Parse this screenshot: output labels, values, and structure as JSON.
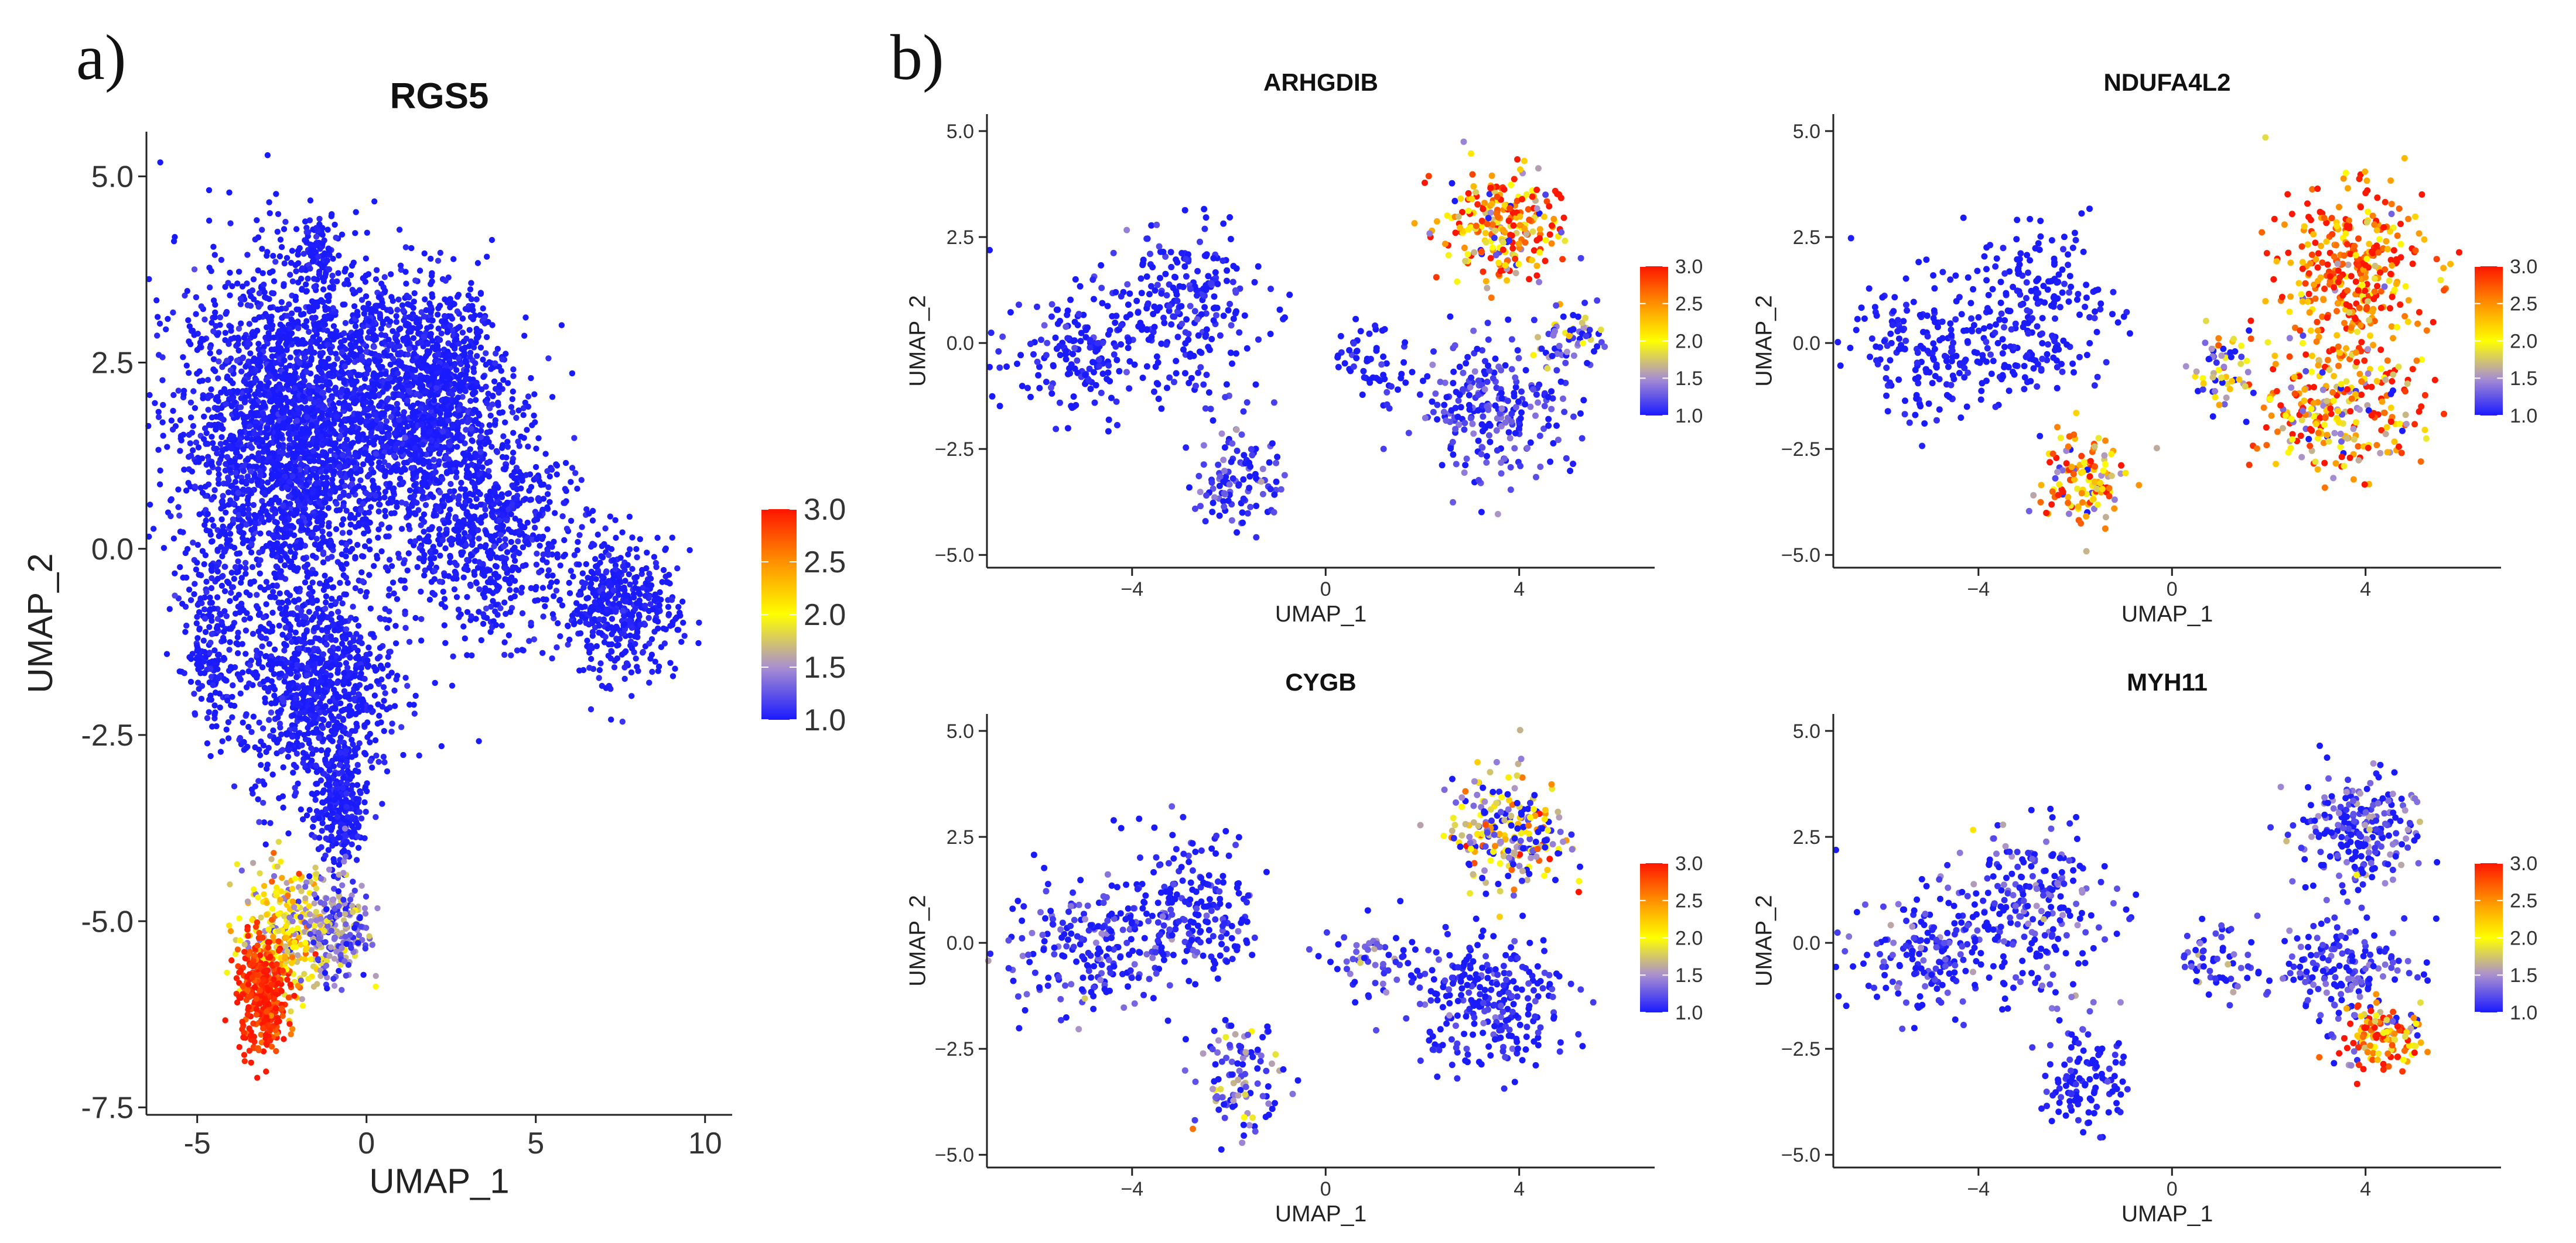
{
  "panel_labels": {
    "a": "a)",
    "b": "b)"
  },
  "colors": {
    "low": "#1a1aff",
    "mid_low": "#a98fd0",
    "mid": "#ffff00",
    "mid_high": "#ff9000",
    "high": "#ff1500",
    "axis": "#222222"
  },
  "chart_data": [
    {
      "id": "RGS5",
      "type": "scatter",
      "title": "RGS5",
      "xlabel": "UMAP_1",
      "ylabel": "UMAP_2",
      "xlim": [
        -6.5,
        10.8
      ],
      "ylim": [
        -7.6,
        5.6
      ],
      "xticks": [
        -5,
        0,
        5,
        10
      ],
      "xtick_labels": [
        "-5",
        "0",
        "5",
        "10"
      ],
      "yticks": [
        5,
        2.5,
        0,
        -2.5,
        -5,
        -7.5
      ],
      "ytick_labels": [
        "5.0",
        "2.5",
        "0.0",
        "-2.5",
        "-5.0",
        "-7.5"
      ],
      "legend": {
        "position": "right",
        "ticks": [
          3.0,
          2.5,
          2.0,
          1.5,
          1.0
        ],
        "tick_labels": [
          "3.0",
          "2.5",
          "2.0",
          "1.5",
          "1.0"
        ],
        "min": 1.0,
        "max": 3.0
      },
      "point_clusters": [
        {
          "cx": -2.2,
          "cy": 1.6,
          "sx": 2.2,
          "sy": 1.5,
          "n": 2600,
          "value": 1.0,
          "spread": 0.05
        },
        {
          "cx": 1.8,
          "cy": 2.1,
          "sx": 1.6,
          "sy": 1.0,
          "n": 1200,
          "value": 1.0,
          "spread": 0.05
        },
        {
          "cx": 3.5,
          "cy": 0.2,
          "sx": 1.8,
          "sy": 0.9,
          "n": 700,
          "value": 1.0,
          "spread": 0.05
        },
        {
          "cx": 7.5,
          "cy": -0.8,
          "sx": 1.1,
          "sy": 0.6,
          "n": 450,
          "value": 1.0,
          "spread": 0.05
        },
        {
          "cx": -1.5,
          "cy": -1.9,
          "sx": 1.5,
          "sy": 1.0,
          "n": 900,
          "value": 1.0,
          "spread": 0.05
        },
        {
          "cx": -4.5,
          "cy": -1.2,
          "sx": 0.5,
          "sy": 0.9,
          "n": 200,
          "value": 1.0,
          "spread": 0.05
        },
        {
          "cx": -1.4,
          "cy": 4.0,
          "sx": 0.4,
          "sy": 0.3,
          "n": 80,
          "value": 1.0,
          "spread": 0.05
        },
        {
          "cx": -0.8,
          "cy": -3.5,
          "sx": 0.5,
          "sy": 0.5,
          "n": 250,
          "value": 1.0,
          "spread": 0.05
        },
        {
          "cx": -2.4,
          "cy": -5.2,
          "sx": 0.9,
          "sy": 0.6,
          "n": 300,
          "value": 2.0,
          "spread": 0.4
        },
        {
          "cx": -0.8,
          "cy": -5.1,
          "sx": 0.6,
          "sy": 0.5,
          "n": 220,
          "value": 1.4,
          "spread": 0.3
        },
        {
          "cx": -3.1,
          "cy": -6.0,
          "sx": 0.5,
          "sy": 0.5,
          "n": 320,
          "value": 2.9,
          "spread": 0.15
        }
      ]
    },
    {
      "id": "ARHGDIB",
      "type": "scatter",
      "title": "ARHGDIB",
      "xlabel": "UMAP_1",
      "ylabel": "UMAP_2",
      "xlim": [
        -7.0,
        6.8
      ],
      "ylim": [
        -5.3,
        5.4
      ],
      "xticks": [
        -4,
        0,
        4
      ],
      "xtick_labels": [
        "−4",
        "0",
        "4"
      ],
      "yticks": [
        5,
        2.5,
        0,
        -2.5,
        -5
      ],
      "ytick_labels": [
        "5.0",
        "2.5",
        "0.0",
        "−2.5",
        "−5.0"
      ],
      "legend": {
        "position": "right",
        "ticks": [
          3.0,
          2.5,
          2.0,
          1.5,
          1.0
        ],
        "tick_labels": [
          "3.0",
          "2.5",
          "2.0",
          "1.5",
          "1.0"
        ],
        "min": 1.0,
        "max": 3.0
      },
      "point_clusters": [
        {
          "cx": -5.0,
          "cy": -0.2,
          "sx": 1.1,
          "sy": 1.0,
          "n": 200,
          "value": 1.0,
          "spread": 0.1
        },
        {
          "cx": -2.8,
          "cy": 0.8,
          "sx": 1.0,
          "sy": 1.3,
          "n": 220,
          "value": 1.0,
          "spread": 0.1
        },
        {
          "cx": -1.8,
          "cy": -3.2,
          "sx": 0.6,
          "sy": 0.8,
          "n": 110,
          "value": 1.1,
          "spread": 0.2
        },
        {
          "cx": 1.0,
          "cy": -0.5,
          "sx": 0.6,
          "sy": 0.6,
          "n": 60,
          "value": 1.0,
          "spread": 0.1
        },
        {
          "cx": 3.6,
          "cy": 2.7,
          "sx": 0.8,
          "sy": 0.9,
          "n": 260,
          "value": 2.4,
          "spread": 0.7
        },
        {
          "cx": 3.5,
          "cy": -1.5,
          "sx": 1.1,
          "sy": 1.0,
          "n": 250,
          "value": 1.1,
          "spread": 0.2
        },
        {
          "cx": 5.0,
          "cy": 0.2,
          "sx": 0.5,
          "sy": 0.6,
          "n": 60,
          "value": 1.3,
          "spread": 0.4
        }
      ]
    },
    {
      "id": "NDUFA4L2",
      "type": "scatter",
      "title": "NDUFA4L2",
      "xlabel": "UMAP_1",
      "ylabel": "UMAP_2",
      "xlim": [
        -7.0,
        6.8
      ],
      "ylim": [
        -5.3,
        5.4
      ],
      "xticks": [
        -4,
        0,
        4
      ],
      "xtick_labels": [
        "−4",
        "0",
        "4"
      ],
      "yticks": [
        5,
        2.5,
        0,
        -2.5,
        -5
      ],
      "ytick_labels": [
        "5.0",
        "2.5",
        "0.0",
        "−2.5",
        "−5.0"
      ],
      "legend": {
        "position": "right",
        "ticks": [
          3.0,
          2.5,
          2.0,
          1.5,
          1.0
        ],
        "tick_labels": [
          "3.0",
          "2.5",
          "2.0",
          "1.5",
          "1.0"
        ],
        "min": 1.0,
        "max": 3.0
      },
      "point_clusters": [
        {
          "cx": -5.0,
          "cy": -0.2,
          "sx": 1.1,
          "sy": 1.0,
          "n": 200,
          "value": 1.0,
          "spread": 0.05
        },
        {
          "cx": -2.8,
          "cy": 0.8,
          "sx": 1.0,
          "sy": 1.3,
          "n": 220,
          "value": 1.0,
          "spread": 0.05
        },
        {
          "cx": -1.8,
          "cy": -3.2,
          "sx": 0.6,
          "sy": 0.8,
          "n": 130,
          "value": 2.2,
          "spread": 0.6
        },
        {
          "cx": 1.0,
          "cy": -0.5,
          "sx": 0.6,
          "sy": 0.6,
          "n": 60,
          "value": 1.6,
          "spread": 0.6
        },
        {
          "cx": 3.7,
          "cy": 1.5,
          "sx": 1.0,
          "sy": 1.4,
          "n": 380,
          "value": 2.7,
          "spread": 0.5
        },
        {
          "cx": 3.4,
          "cy": -1.6,
          "sx": 1.1,
          "sy": 1.0,
          "n": 250,
          "value": 2.4,
          "spread": 0.7
        }
      ]
    },
    {
      "id": "CYGB",
      "type": "scatter",
      "title": "CYGB",
      "xlabel": "UMAP_1",
      "ylabel": "UMAP_2",
      "xlim": [
        -7.0,
        6.8
      ],
      "ylim": [
        -5.3,
        5.4
      ],
      "xticks": [
        -4,
        0,
        4
      ],
      "xtick_labels": [
        "−4",
        "0",
        "4"
      ],
      "yticks": [
        5,
        2.5,
        0,
        -2.5,
        -5
      ],
      "ytick_labels": [
        "5.0",
        "2.5",
        "0.0",
        "−2.5",
        "−5.0"
      ],
      "legend": {
        "position": "right",
        "ticks": [
          3.0,
          2.5,
          2.0,
          1.5,
          1.0
        ],
        "tick_labels": [
          "3.0",
          "2.5",
          "2.0",
          "1.5",
          "1.0"
        ],
        "min": 1.0,
        "max": 3.0
      },
      "point_clusters": [
        {
          "cx": -5.0,
          "cy": -0.2,
          "sx": 1.1,
          "sy": 1.0,
          "n": 200,
          "value": 1.05,
          "spread": 0.25
        },
        {
          "cx": -2.8,
          "cy": 0.8,
          "sx": 1.0,
          "sy": 1.3,
          "n": 220,
          "value": 1.0,
          "spread": 0.15
        },
        {
          "cx": -1.8,
          "cy": -3.2,
          "sx": 0.6,
          "sy": 0.8,
          "n": 110,
          "value": 1.2,
          "spread": 0.4
        },
        {
          "cx": 1.0,
          "cy": -0.5,
          "sx": 0.6,
          "sy": 0.6,
          "n": 60,
          "value": 1.1,
          "spread": 0.3
        },
        {
          "cx": 3.8,
          "cy": 2.6,
          "sx": 0.8,
          "sy": 0.9,
          "n": 240,
          "value": 1.6,
          "spread": 0.7
        },
        {
          "cx": 3.4,
          "cy": -1.4,
          "sx": 1.1,
          "sy": 1.0,
          "n": 270,
          "value": 1.0,
          "spread": 0.15
        }
      ]
    },
    {
      "id": "MYH11",
      "type": "scatter",
      "title": "MYH11",
      "xlabel": "UMAP_1",
      "ylabel": "UMAP_2",
      "xlim": [
        -7.0,
        6.8
      ],
      "ylim": [
        -5.3,
        5.4
      ],
      "xticks": [
        -4,
        0,
        4
      ],
      "xtick_labels": [
        "−4",
        "0",
        "4"
      ],
      "yticks": [
        5,
        2.5,
        0,
        -2.5,
        -5
      ],
      "ytick_labels": [
        "5.0",
        "2.5",
        "0.0",
        "−2.5",
        "−5.0"
      ],
      "legend": {
        "position": "right",
        "ticks": [
          3.0,
          2.5,
          2.0,
          1.5,
          1.0
        ],
        "tick_labels": [
          "3.0",
          "2.5",
          "2.0",
          "1.5",
          "1.0"
        ],
        "min": 1.0,
        "max": 3.0
      },
      "point_clusters": [
        {
          "cx": -5.0,
          "cy": -0.2,
          "sx": 1.1,
          "sy": 1.0,
          "n": 200,
          "value": 1.05,
          "spread": 0.2
        },
        {
          "cx": -2.8,
          "cy": 0.8,
          "sx": 1.0,
          "sy": 1.3,
          "n": 220,
          "value": 1.05,
          "spread": 0.25
        },
        {
          "cx": -1.8,
          "cy": -3.2,
          "sx": 0.6,
          "sy": 0.8,
          "n": 110,
          "value": 1.0,
          "spread": 0.1
        },
        {
          "cx": 1.0,
          "cy": -0.5,
          "sx": 0.6,
          "sy": 0.6,
          "n": 60,
          "value": 1.1,
          "spread": 0.3
        },
        {
          "cx": 3.8,
          "cy": 2.6,
          "sx": 0.8,
          "sy": 0.9,
          "n": 240,
          "value": 1.1,
          "spread": 0.3
        },
        {
          "cx": 3.6,
          "cy": -0.6,
          "sx": 1.0,
          "sy": 0.9,
          "n": 180,
          "value": 1.1,
          "spread": 0.2
        },
        {
          "cx": 4.3,
          "cy": -2.2,
          "sx": 0.6,
          "sy": 0.5,
          "n": 120,
          "value": 2.5,
          "spread": 0.6
        }
      ]
    }
  ]
}
